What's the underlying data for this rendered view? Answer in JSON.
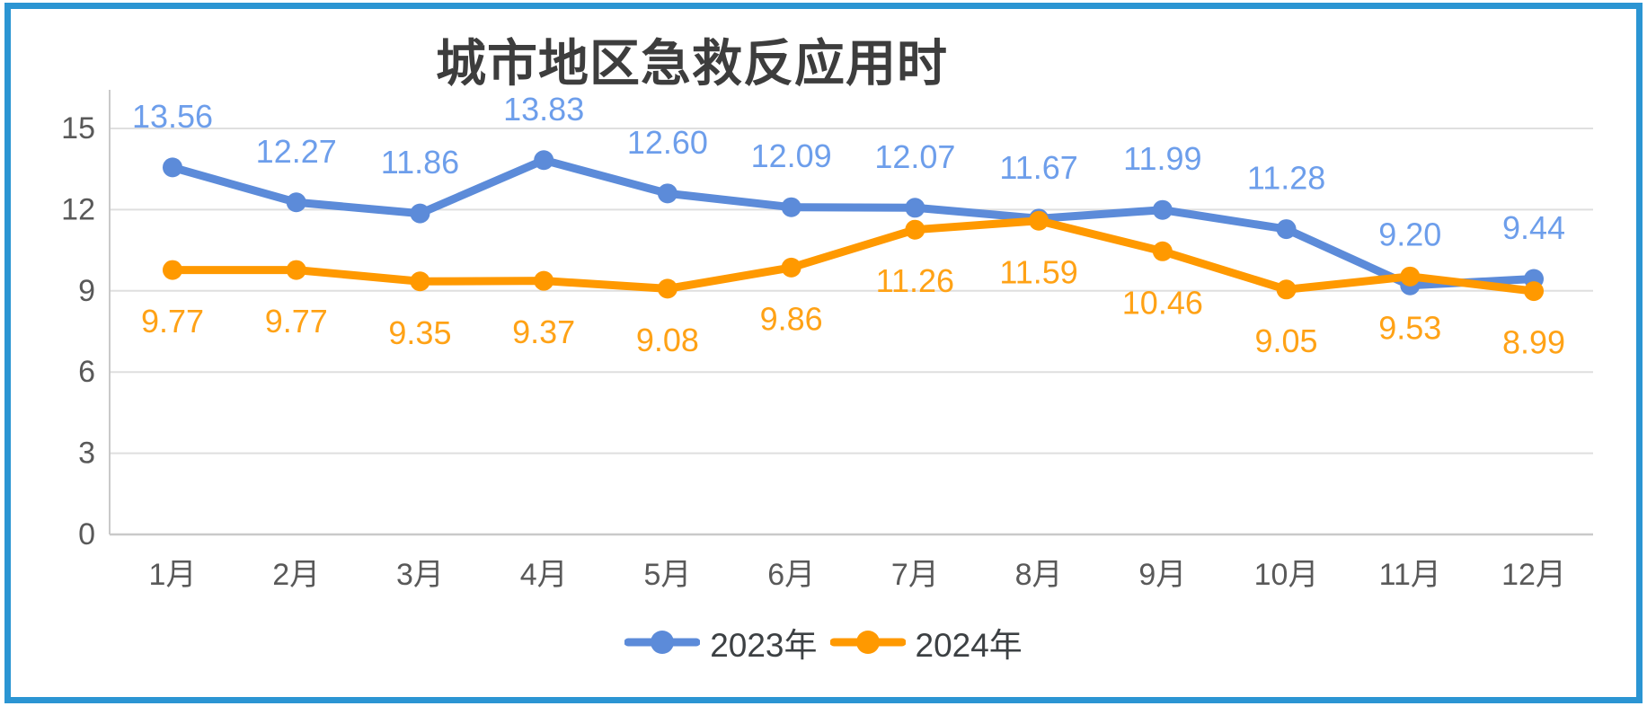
{
  "frame": {
    "border_color": "#2B95D3",
    "background": "#FFFFFF"
  },
  "chart_data": {
    "type": "line",
    "title": "城市地区急救反应用时",
    "categories": [
      "1月",
      "2月",
      "3月",
      "4月",
      "5月",
      "6月",
      "7月",
      "8月",
      "9月",
      "10月",
      "11月",
      "12月"
    ],
    "series": [
      {
        "name": "2023年",
        "color": "#5C8BD9",
        "label_color": "#6D9EEB",
        "values": [
          13.56,
          12.27,
          11.86,
          13.83,
          12.6,
          12.09,
          12.07,
          11.67,
          11.99,
          11.28,
          9.2,
          9.44
        ]
      },
      {
        "name": "2024年",
        "color": "#FF9900",
        "label_color": "#FFA216",
        "values": [
          9.77,
          9.77,
          9.35,
          9.37,
          9.08,
          9.86,
          11.26,
          11.59,
          10.46,
          9.05,
          9.53,
          8.99
        ]
      }
    ],
    "ylim": [
      0,
      15
    ],
    "y_ticks": [
      0,
      3,
      6,
      9,
      12,
      15
    ],
    "xlabel": "",
    "ylabel": "",
    "grid": true,
    "data_labels": true,
    "label_decimals": 2,
    "legend_position": "bottom",
    "axis_text_color": "#595959",
    "grid_color": "#DFDFDF",
    "axis_line_color": "#C9C9C9",
    "title_color": "#3D3D3D"
  }
}
